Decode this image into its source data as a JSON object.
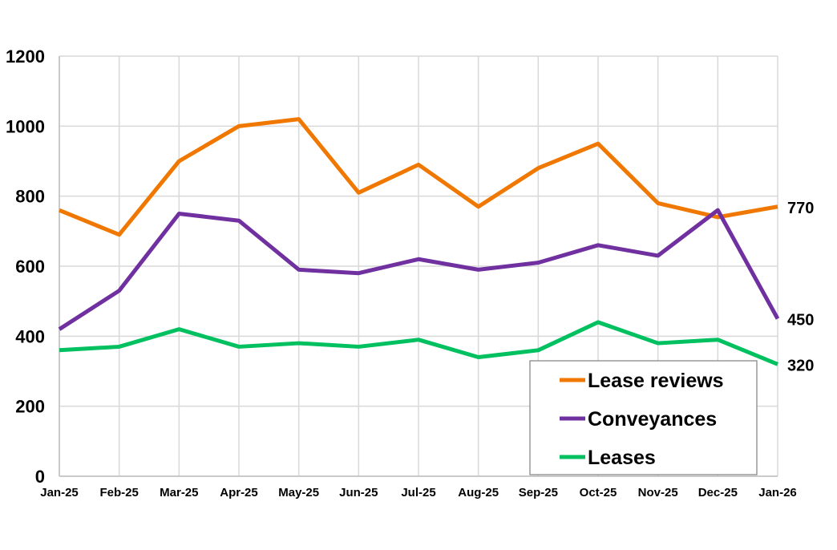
{
  "chart_data": {
    "type": "line",
    "title": "",
    "xlabel": "",
    "ylabel": "",
    "categories": [
      "Jan-25",
      "Feb-25",
      "Mar-25",
      "Apr-25",
      "May-25",
      "Jun-25",
      "Jul-25",
      "Aug-25",
      "Sep-25",
      "Oct-25",
      "Nov-25",
      "Dec-25",
      "Jan-26"
    ],
    "ylim": [
      0,
      1200
    ],
    "yticks": [
      0,
      200,
      400,
      600,
      800,
      1000,
      1200
    ],
    "grid": "vertical and horizontal",
    "legend_placement": "bottom-right",
    "series": [
      {
        "name": "Lease reviews",
        "color": "#F07800",
        "values": [
          760,
          690,
          900,
          1000,
          1020,
          810,
          890,
          770,
          880,
          950,
          780,
          740,
          770
        ],
        "end_label": "770"
      },
      {
        "name": "Conveyances",
        "color": "#7030A0",
        "values": [
          420,
          530,
          750,
          730,
          590,
          580,
          620,
          590,
          610,
          660,
          630,
          760,
          450
        ],
        "end_label": "450"
      },
      {
        "name": "Leases",
        "color": "#00C060",
        "values": [
          360,
          370,
          420,
          370,
          380,
          370,
          390,
          340,
          360,
          440,
          380,
          390,
          320
        ],
        "end_label": "320"
      }
    ]
  }
}
